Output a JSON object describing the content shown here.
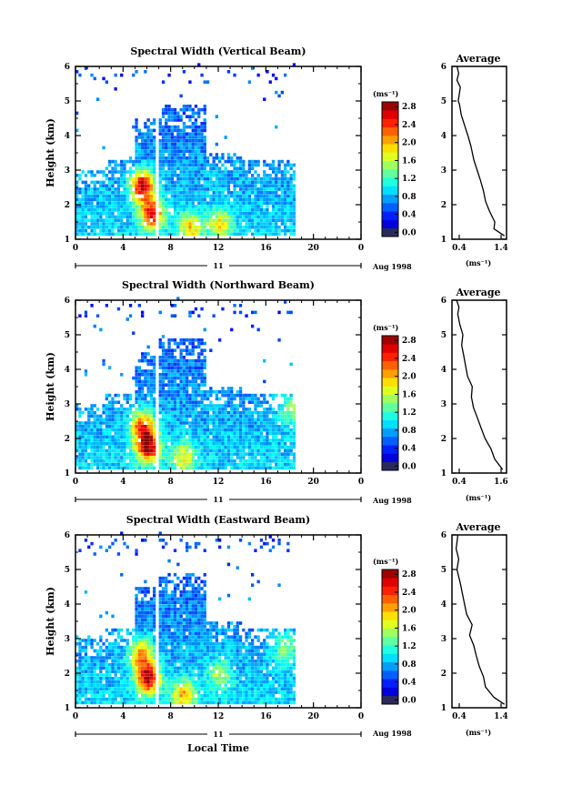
{
  "figure": {
    "date_label": "Aug 1998",
    "day_label": "11",
    "xlabel": "Local Time",
    "colorbar_unit": "(ms⁻¹)",
    "avg_unit": "(ms⁻¹)"
  },
  "chart_data": [
    {
      "type": "heatmap",
      "title": "Spectral Width (Vertical Beam)",
      "ylabel": "Height (km)",
      "xlabel": "Local Time",
      "x_ticks": [
        "0",
        "4",
        "8",
        "12",
        "16",
        "20",
        "0"
      ],
      "y_ticks": [
        "1",
        "2",
        "3",
        "4",
        "5",
        "6"
      ],
      "xlim": [
        0,
        24
      ],
      "ylim": [
        1,
        6
      ],
      "data_span": {
        "start_hour": 0,
        "end_hour": 18.5,
        "gap_hours": [
          6.7,
          7.0
        ]
      },
      "hotspots": [
        [
          5.5,
          2.5,
          2.8
        ],
        [
          6.3,
          1.7,
          2.6
        ],
        [
          9.5,
          1.3,
          1.9
        ],
        [
          12.0,
          1.4,
          1.8
        ]
      ],
      "colorbar": {
        "ticks": [
          "0.0",
          "0.4",
          "0.8",
          "1.2",
          "1.6",
          "2.0",
          "2.4",
          "2.8"
        ],
        "min": 0,
        "max": 3.0
      }
    },
    {
      "type": "line",
      "title": "Average",
      "xlabel": "(ms⁻¹)",
      "x_ticks": [
        "0.4",
        "1.4"
      ],
      "y_ticks": [
        "1",
        "2",
        "3",
        "4",
        "5",
        "6"
      ],
      "xlim": [
        0.2,
        1.5
      ],
      "ylim": [
        1,
        6
      ],
      "x": [
        1.45,
        1.2,
        1.22,
        1.1,
        1.0,
        0.95,
        0.88,
        0.8,
        0.72,
        0.65,
        0.58,
        0.5,
        0.42,
        0.38,
        0.35,
        0.4,
        0.32,
        0.36,
        0.32
      ],
      "y": [
        1.1,
        1.3,
        1.5,
        1.8,
        2.1,
        2.4,
        2.7,
        3.0,
        3.3,
        3.7,
        4.0,
        4.3,
        4.6,
        4.9,
        5.0,
        5.4,
        5.6,
        5.8,
        6.0
      ]
    },
    {
      "type": "heatmap",
      "title": "Spectral Width (Northward Beam)",
      "ylabel": "Height (km)",
      "xlabel": "Local Time",
      "x_ticks": [
        "0",
        "4",
        "8",
        "12",
        "16",
        "20",
        "0"
      ],
      "y_ticks": [
        "1",
        "2",
        "3",
        "4",
        "5",
        "6"
      ],
      "xlim": [
        0,
        24
      ],
      "ylim": [
        1,
        6
      ],
      "data_span": {
        "start_hour": 0,
        "end_hour": 18.5,
        "gap_hours": [
          6.7,
          7.0
        ]
      },
      "hotspots": [
        [
          6.0,
          1.7,
          2.8
        ],
        [
          5.5,
          2.3,
          2.4
        ],
        [
          9.0,
          1.4,
          1.8
        ],
        [
          18.0,
          2.8,
          1.6
        ]
      ],
      "colorbar": {
        "ticks": [
          "0.0",
          "0.4",
          "0.8",
          "1.2",
          "1.6",
          "2.0",
          "2.4",
          "2.8"
        ],
        "min": 0,
        "max": 3.0
      }
    },
    {
      "type": "line",
      "title": "Average",
      "xlabel": "(ms⁻¹)",
      "x_ticks": [
        "0.4",
        "1.6"
      ],
      "y_ticks": [
        "1",
        "2",
        "3",
        "4",
        "5",
        "6"
      ],
      "xlim": [
        0.2,
        1.6
      ],
      "ylim": [
        1,
        6
      ],
      "x": [
        1.5,
        1.3,
        1.2,
        1.05,
        0.95,
        0.85,
        0.75,
        0.7,
        0.72,
        0.6,
        0.55,
        0.5,
        0.45,
        0.48,
        0.4,
        0.35,
        0.38,
        0.32
      ],
      "y": [
        1.1,
        1.4,
        1.7,
        2.0,
        2.3,
        2.6,
        2.9,
        3.2,
        3.5,
        3.8,
        4.1,
        4.4,
        4.7,
        5.0,
        5.3,
        5.6,
        5.8,
        6.0
      ]
    },
    {
      "type": "heatmap",
      "title": "Spectral Width (Eastward Beam)",
      "ylabel": "Height (km)",
      "xlabel": "Local Time",
      "x_ticks": [
        "0",
        "4",
        "8",
        "12",
        "16",
        "20",
        "0"
      ],
      "y_ticks": [
        "1",
        "2",
        "3",
        "4",
        "5",
        "6"
      ],
      "xlim": [
        0,
        24
      ],
      "ylim": [
        1,
        6
      ],
      "data_span": {
        "start_hour": 0,
        "end_hour": 18.5,
        "gap_hours": [
          6.7,
          7.0
        ]
      },
      "hotspots": [
        [
          6.0,
          1.8,
          2.8
        ],
        [
          5.4,
          2.5,
          2.2
        ],
        [
          9.0,
          1.3,
          2.0
        ],
        [
          12.0,
          1.9,
          1.6
        ],
        [
          17.5,
          2.7,
          1.6
        ]
      ],
      "colorbar": {
        "ticks": [
          "0.0",
          "0.4",
          "0.8",
          "1.2",
          "1.6",
          "2.0",
          "2.4",
          "2.8"
        ],
        "min": 0,
        "max": 3.0
      }
    },
    {
      "type": "line",
      "title": "Average",
      "xlabel": "(ms⁻¹)",
      "x_ticks": [
        "0.4",
        "1.4"
      ],
      "y_ticks": [
        "1",
        "2",
        "3",
        "4",
        "5",
        "6"
      ],
      "xlim": [
        0.2,
        1.5
      ],
      "ylim": [
        1,
        6
      ],
      "x": [
        1.45,
        1.2,
        1.0,
        0.95,
        0.85,
        0.78,
        0.72,
        0.62,
        0.68,
        0.55,
        0.5,
        0.45,
        0.4,
        0.32,
        0.36,
        0.3,
        0.34
      ],
      "y": [
        1.1,
        1.3,
        1.6,
        1.9,
        2.2,
        2.5,
        2.8,
        3.1,
        3.4,
        3.7,
        4.0,
        4.3,
        4.6,
        5.0,
        5.3,
        5.6,
        6.0
      ]
    }
  ]
}
